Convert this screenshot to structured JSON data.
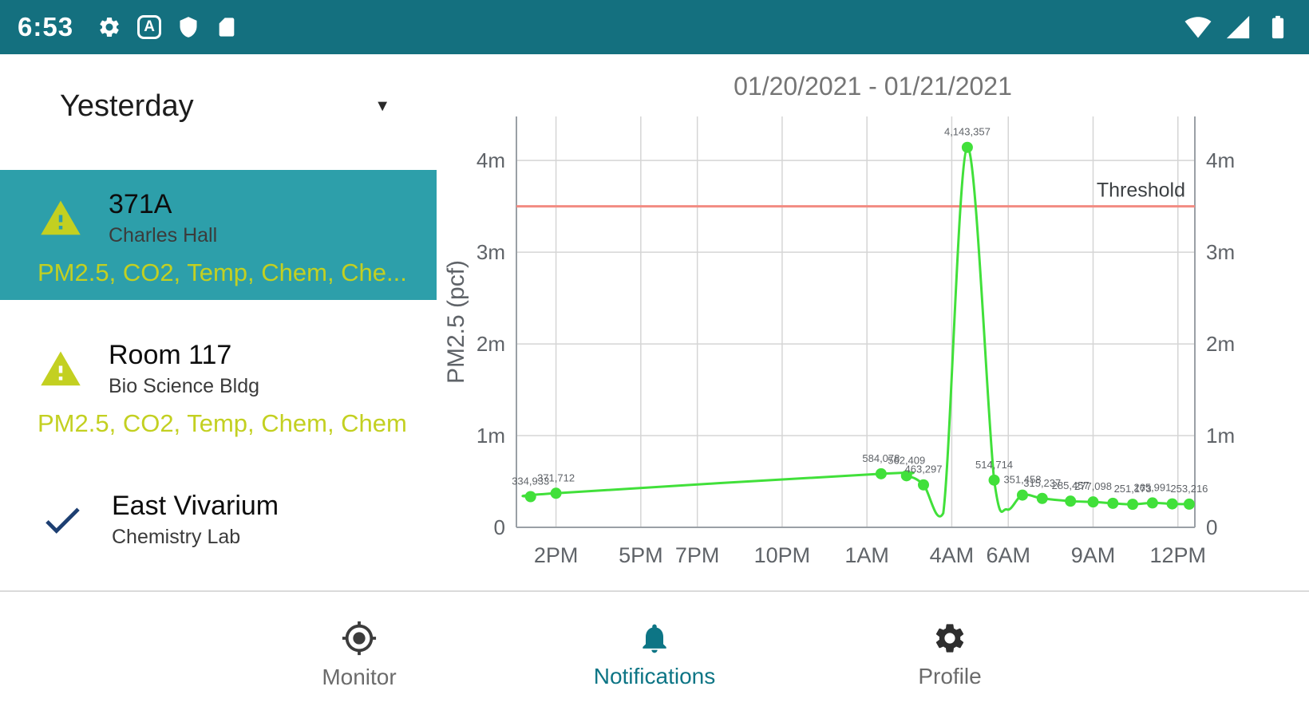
{
  "statusbar": {
    "time": "6:53",
    "left_icons": [
      "gear-icon",
      "letter-a-icon",
      "shield-icon",
      "sim-card-icon"
    ],
    "letter_badge": "A",
    "right_icons": [
      "wifi-icon",
      "signal-icon",
      "battery-icon"
    ],
    "bg_color": "#14707f"
  },
  "sidebar": {
    "filter": {
      "label": "Yesterday"
    },
    "items": [
      {
        "name": "371A",
        "location": "Charles Hall",
        "sensors": "PM2.5, CO2, Temp, Chem, Che...",
        "status": "warning",
        "selected": true
      },
      {
        "name": "Room 117",
        "location": "Bio Science Bldg",
        "sensors": "PM2.5, CO2, Temp, Chem, Chem",
        "status": "warning",
        "selected": false
      },
      {
        "name": "East Vivarium",
        "location": "Chemistry Lab",
        "sensors": "",
        "status": "ok",
        "selected": false
      }
    ],
    "selected_bg": "#2d9faa",
    "warning_color": "#c3d021",
    "check_color": "#1d3f72"
  },
  "bottom_nav": {
    "items": [
      {
        "label": "Monitor",
        "icon": "my-location-icon",
        "active": false
      },
      {
        "label": "Notifications",
        "icon": "bell-icon",
        "active": true
      },
      {
        "label": "Profile",
        "icon": "gear-icon",
        "active": false
      }
    ],
    "active_color": "#0d7585"
  },
  "chart_data": {
    "type": "line",
    "title": "01/20/2021 - 01/21/2021",
    "ylabel": "PM2.5 (pcf)",
    "x_unit": "hour-of-day (13 = 1PM day 1, 36 = 12PM day 2)",
    "x_domain": [
      12.6,
      36.6
    ],
    "y_domain": [
      0,
      4480000
    ],
    "grid": true,
    "legend": "none",
    "line_color": "#41e03a",
    "x_ticks": [
      {
        "h": 14,
        "label": "2PM"
      },
      {
        "h": 17,
        "label": "5PM"
      },
      {
        "h": 19,
        "label": "7PM"
      },
      {
        "h": 22,
        "label": "10PM"
      },
      {
        "h": 25,
        "label": "1AM"
      },
      {
        "h": 28,
        "label": "4AM"
      },
      {
        "h": 30,
        "label": "6AM"
      },
      {
        "h": 33,
        "label": "9AM"
      },
      {
        "h": 36,
        "label": "12PM"
      }
    ],
    "y_ticks": [
      {
        "v": 0,
        "label": "0"
      },
      {
        "v": 1000000,
        "label": "1m"
      },
      {
        "v": 2000000,
        "label": "2m"
      },
      {
        "v": 3000000,
        "label": "3m"
      },
      {
        "v": 4000000,
        "label": "4m"
      }
    ],
    "threshold": {
      "value": 3500000,
      "label": "Threshold",
      "color": "#f28b82"
    },
    "points": [
      {
        "h": 13.1,
        "v": 334933,
        "label": "334,933",
        "marker": true
      },
      {
        "h": 14.0,
        "v": 371712,
        "label": "371,712",
        "marker": true
      },
      {
        "h": 25.5,
        "v": 584078,
        "label": "584,078",
        "marker": true
      },
      {
        "h": 26.4,
        "v": 562409,
        "label": "562,409",
        "marker": true
      },
      {
        "h": 27.0,
        "v": 463297,
        "label": "463,297",
        "marker": true
      },
      {
        "h": 27.7,
        "v": 155000,
        "label": null,
        "marker": false
      },
      {
        "h": 28.55,
        "v": 4143357,
        "label": "4,143,357",
        "marker": true
      },
      {
        "h": 29.5,
        "v": 514714,
        "label": "514,714",
        "marker": true
      },
      {
        "h": 29.95,
        "v": 195000,
        "label": null,
        "marker": false
      },
      {
        "h": 30.5,
        "v": 351458,
        "label": "351,458",
        "marker": true
      },
      {
        "h": 31.2,
        "v": 315237,
        "label": "315,237",
        "marker": true
      },
      {
        "h": 32.2,
        "v": 285457,
        "label": "285,457",
        "marker": true
      },
      {
        "h": 33.0,
        "v": 277098,
        "label": "277,098",
        "marker": true
      },
      {
        "h": 33.7,
        "v": 262000,
        "label": null,
        "marker": true
      },
      {
        "h": 34.4,
        "v": 251173,
        "label": "251,173",
        "marker": true
      },
      {
        "h": 35.1,
        "v": 265991,
        "label": "265,991",
        "marker": true
      },
      {
        "h": 35.8,
        "v": 256000,
        "label": null,
        "marker": true
      },
      {
        "h": 36.4,
        "v": 253216,
        "label": "253,216",
        "marker": true
      }
    ]
  }
}
